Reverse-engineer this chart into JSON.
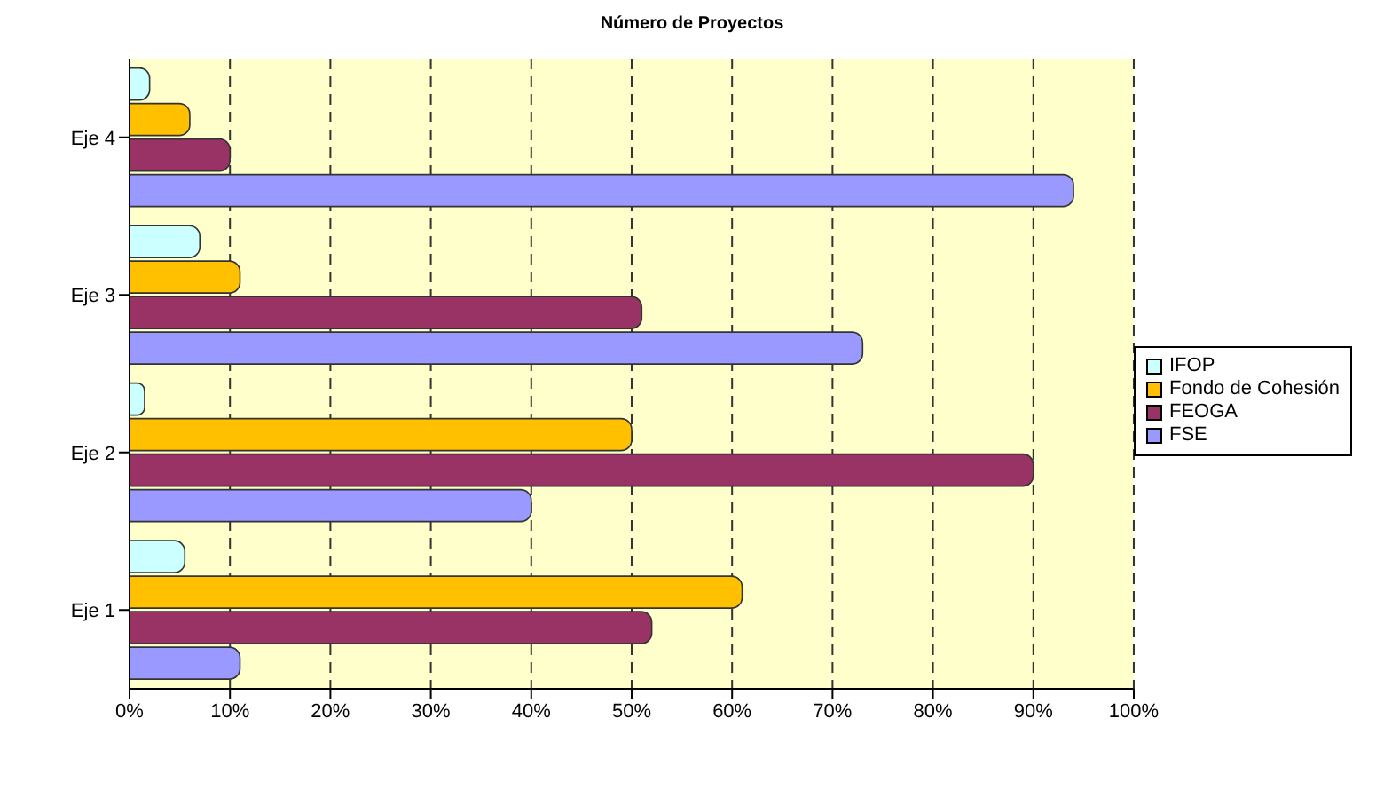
{
  "chart_data": {
    "type": "bar",
    "orientation": "horizontal",
    "title": "Número de Proyectos",
    "categories": [
      "Eje 4",
      "Eje 3",
      "Eje 2",
      "Eje 1"
    ],
    "series": [
      {
        "name": "IFOP",
        "color": "#ccffff",
        "values": [
          2,
          7,
          1.5,
          5.5
        ]
      },
      {
        "name": "Fondo de Cohesión",
        "color": "#ffc000",
        "values": [
          6,
          11,
          50,
          61
        ]
      },
      {
        "name": "FEOGA",
        "color": "#993366",
        "values": [
          10,
          51,
          90,
          52
        ]
      },
      {
        "name": "FSE",
        "color": "#9999ff",
        "values": [
          94,
          73,
          40,
          11
        ]
      }
    ],
    "xlim": [
      0,
      100
    ],
    "xticks": [
      {
        "value": 0,
        "label": "0%"
      },
      {
        "value": 10,
        "label": "10%"
      },
      {
        "value": 20,
        "label": "20%"
      },
      {
        "value": 30,
        "label": "30%"
      },
      {
        "value": 40,
        "label": "40%"
      },
      {
        "value": 50,
        "label": "50%"
      },
      {
        "value": 60,
        "label": "60%"
      },
      {
        "value": 70,
        "label": "70%"
      },
      {
        "value": 80,
        "label": "80%"
      },
      {
        "value": 90,
        "label": "90%"
      },
      {
        "value": 100,
        "label": "100%"
      }
    ],
    "grid": "x",
    "legend": "right"
  }
}
